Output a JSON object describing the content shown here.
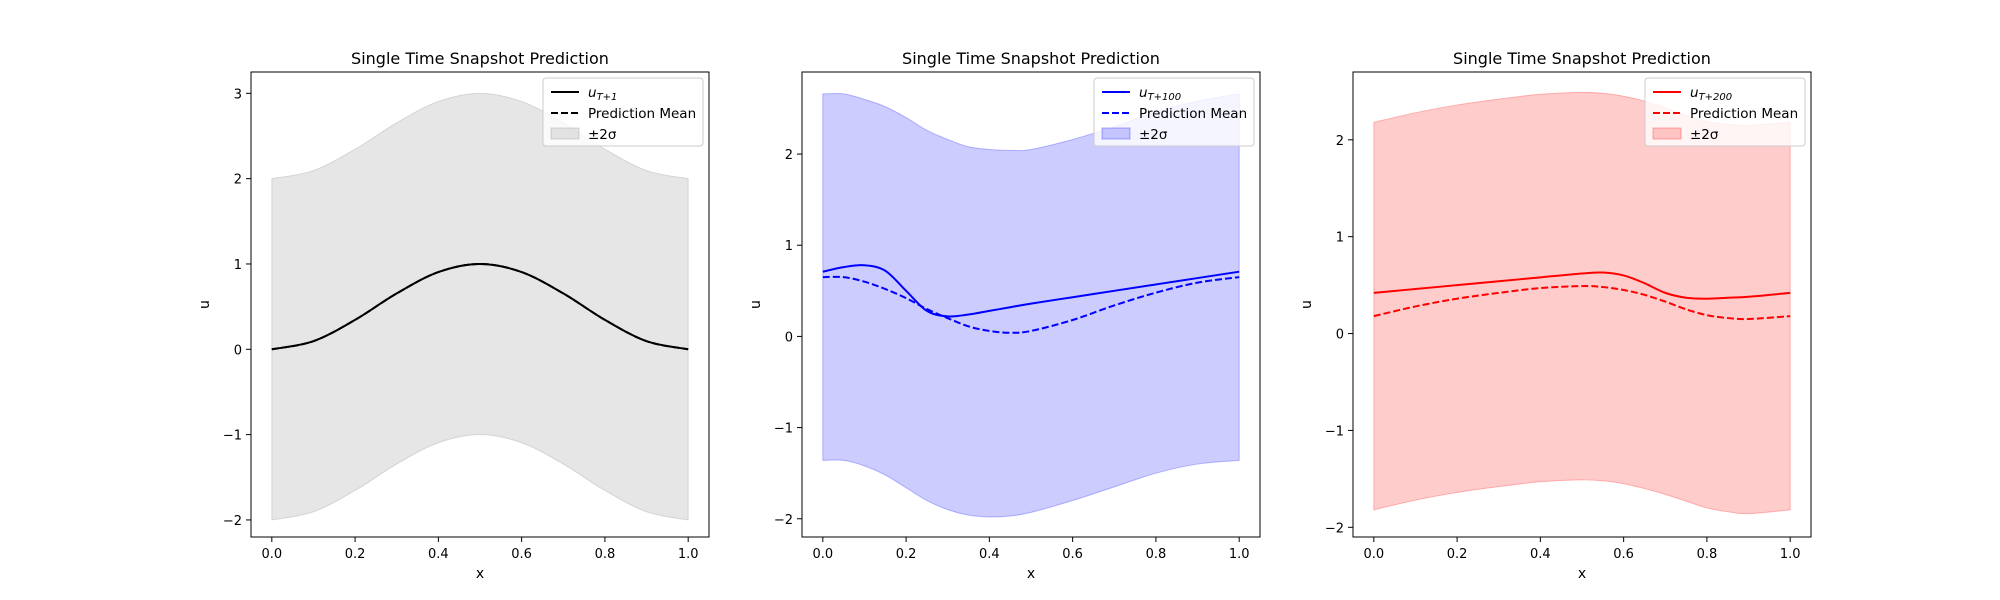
{
  "chart_data": [
    {
      "type": "line",
      "title": "Single Time Snapshot Prediction",
      "xlabel": "x",
      "ylabel": "u",
      "xlim": [
        -0.05,
        1.05
      ],
      "ylim": [
        -2.2,
        3.25
      ],
      "xticks": [
        0.0,
        0.2,
        0.4,
        0.6,
        0.8,
        1.0
      ],
      "xtick_labels": [
        "0.0",
        "0.2",
        "0.4",
        "0.6",
        "0.8",
        "1.0"
      ],
      "yticks": [
        -2,
        -1,
        0,
        1,
        2,
        3
      ],
      "ytick_labels": [
        "−2",
        "−1",
        "0",
        "1",
        "2",
        "3"
      ],
      "legend_position": "top-right",
      "color": "#000000",
      "band_color": "#808080",
      "x": [
        0.0,
        0.1,
        0.2,
        0.3,
        0.4,
        0.5,
        0.6,
        0.7,
        0.8,
        0.9,
        1.0
      ],
      "series": [
        {
          "name": "uT+1",
          "name_main": "u",
          "name_sub": "T+1",
          "style": "solid",
          "values": [
            0.0,
            0.095,
            0.345,
            0.655,
            0.905,
            1.0,
            0.905,
            0.655,
            0.345,
            0.095,
            0.0
          ]
        },
        {
          "name": "Prediction Mean",
          "style": "dashed",
          "values": [
            0.0,
            0.095,
            0.345,
            0.655,
            0.905,
            1.0,
            0.905,
            0.655,
            0.345,
            0.095,
            0.0
          ]
        }
      ],
      "band": {
        "name": "±2σ",
        "lower": [
          -2.0,
          -1.905,
          -1.655,
          -1.345,
          -1.095,
          -1.0,
          -1.095,
          -1.345,
          -1.655,
          -1.905,
          -2.0
        ],
        "upper": [
          2.0,
          2.095,
          2.345,
          2.655,
          2.905,
          3.0,
          2.905,
          2.655,
          2.345,
          2.095,
          2.0
        ]
      }
    },
    {
      "type": "line",
      "title": "Single Time Snapshot Prediction",
      "xlabel": "x",
      "ylabel": "u",
      "xlim": [
        -0.05,
        1.05
      ],
      "ylim": [
        -2.2,
        2.9
      ],
      "xticks": [
        0.0,
        0.2,
        0.4,
        0.6,
        0.8,
        1.0
      ],
      "xtick_labels": [
        "0.0",
        "0.2",
        "0.4",
        "0.6",
        "0.8",
        "1.0"
      ],
      "yticks": [
        -2,
        -1,
        0,
        1,
        2
      ],
      "ytick_labels": [
        "−2",
        "−1",
        "0",
        "1",
        "2"
      ],
      "legend_position": "top-right",
      "color": "#0000ff",
      "band_color": "#0000ff",
      "x": [
        0.0,
        0.05,
        0.1,
        0.15,
        0.2,
        0.25,
        0.3,
        0.35,
        0.4,
        0.45,
        0.5,
        0.6,
        0.7,
        0.8,
        0.9,
        1.0
      ],
      "series": [
        {
          "name": "uT+100",
          "name_main": "u",
          "name_sub": "T+100",
          "style": "solid",
          "values": [
            0.71,
            0.76,
            0.78,
            0.72,
            0.5,
            0.28,
            0.22,
            0.24,
            0.28,
            0.32,
            0.36,
            0.43,
            0.5,
            0.57,
            0.64,
            0.71
          ]
        },
        {
          "name": "Prediction Mean",
          "style": "dashed",
          "values": [
            0.65,
            0.65,
            0.6,
            0.52,
            0.42,
            0.3,
            0.2,
            0.11,
            0.06,
            0.04,
            0.06,
            0.18,
            0.34,
            0.48,
            0.59,
            0.65
          ]
        }
      ],
      "band": {
        "name": "±2σ",
        "lower": [
          -1.36,
          -1.36,
          -1.42,
          -1.52,
          -1.66,
          -1.8,
          -1.9,
          -1.96,
          -1.98,
          -1.97,
          -1.93,
          -1.8,
          -1.65,
          -1.5,
          -1.4,
          -1.36
        ],
        "upper": [
          2.66,
          2.66,
          2.6,
          2.52,
          2.4,
          2.26,
          2.16,
          2.08,
          2.05,
          2.04,
          2.05,
          2.16,
          2.3,
          2.46,
          2.58,
          2.66
        ]
      }
    },
    {
      "type": "line",
      "title": "Single Time Snapshot Prediction",
      "xlabel": "x",
      "ylabel": "u",
      "xlim": [
        -0.05,
        1.05
      ],
      "ylim": [
        -2.1,
        2.7
      ],
      "xticks": [
        0.0,
        0.2,
        0.4,
        0.6,
        0.8,
        1.0
      ],
      "xtick_labels": [
        "0.0",
        "0.2",
        "0.4",
        "0.6",
        "0.8",
        "1.0"
      ],
      "yticks": [
        -2,
        -1,
        0,
        1,
        2
      ],
      "ytick_labels": [
        "−2",
        "−1",
        "0",
        "1",
        "2"
      ],
      "legend_position": "top-right",
      "color": "#ff0000",
      "band_color": "#ff0000",
      "x": [
        0.0,
        0.1,
        0.2,
        0.3,
        0.4,
        0.5,
        0.55,
        0.6,
        0.65,
        0.7,
        0.75,
        0.8,
        0.85,
        0.9,
        1.0
      ],
      "series": [
        {
          "name": "uT+200",
          "name_main": "u",
          "name_sub": "T+200",
          "style": "solid",
          "values": [
            0.42,
            0.46,
            0.5,
            0.54,
            0.58,
            0.62,
            0.63,
            0.6,
            0.52,
            0.42,
            0.37,
            0.36,
            0.37,
            0.38,
            0.42
          ]
        },
        {
          "name": "Prediction Mean",
          "style": "dashed",
          "values": [
            0.18,
            0.28,
            0.36,
            0.42,
            0.47,
            0.49,
            0.48,
            0.45,
            0.4,
            0.33,
            0.25,
            0.19,
            0.16,
            0.15,
            0.18
          ]
        }
      ],
      "band": {
        "name": "±2σ",
        "lower": [
          -1.82,
          -1.72,
          -1.64,
          -1.58,
          -1.53,
          -1.51,
          -1.52,
          -1.55,
          -1.6,
          -1.66,
          -1.73,
          -1.8,
          -1.84,
          -1.86,
          -1.82
        ],
        "upper": [
          2.18,
          2.28,
          2.36,
          2.42,
          2.47,
          2.49,
          2.48,
          2.45,
          2.4,
          2.33,
          2.25,
          2.19,
          2.16,
          2.15,
          2.18
        ]
      }
    }
  ]
}
